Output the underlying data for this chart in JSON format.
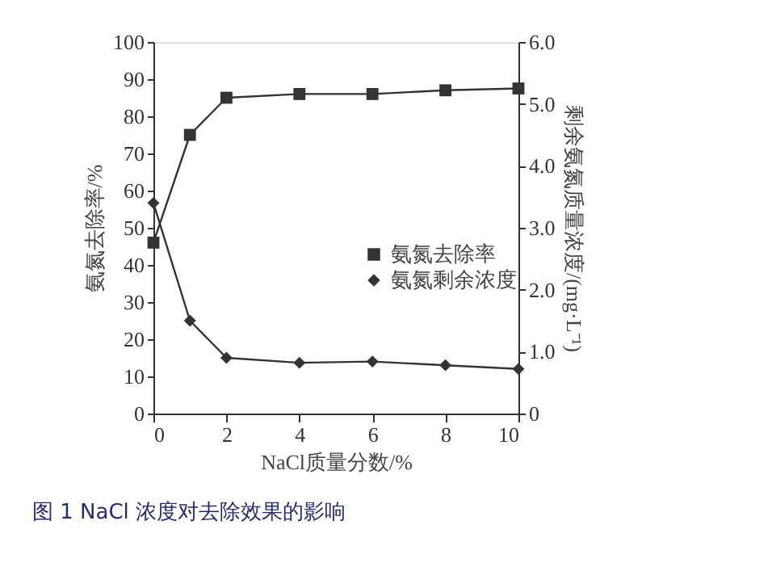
{
  "chart_data": {
    "type": "line",
    "xlabel": "NaCl质量分数/%",
    "ylabel": "氨氮去除率/%",
    "y2label": "剩余氨氮质量浓度/(mg·L⁻¹)",
    "x": [
      0,
      1,
      2,
      4,
      6,
      8,
      10
    ],
    "series": [
      {
        "name": "氨氮去除率",
        "color": "#333333",
        "marker": "square",
        "values": [
          46,
          75,
          85,
          86,
          86,
          87,
          87.5
        ]
      },
      {
        "name": "氨氮剩余浓度",
        "color": "#333333",
        "marker": "diamond",
        "axis": "y2",
        "values": [
          3.4,
          1.5,
          0.9,
          0.82,
          0.84,
          0.78,
          0.72
        ]
      }
    ],
    "xlim": [
      0,
      10
    ],
    "xticks": [
      0,
      2,
      4,
      6,
      8,
      10
    ],
    "ylim": [
      0,
      100
    ],
    "yticks": [
      0,
      10,
      20,
      30,
      40,
      50,
      60,
      70,
      80,
      90,
      100
    ],
    "y2lim": [
      0,
      6
    ],
    "y2ticks": [
      0,
      {
        "value": 1,
        "label": "1.0"
      },
      {
        "value": 2,
        "label": "2.0"
      },
      {
        "value": 3,
        "label": "3.0"
      },
      {
        "value": 4,
        "label": "4.0"
      },
      {
        "value": 5,
        "label": "5.0"
      },
      {
        "value": 6,
        "label": "6.0"
      }
    ],
    "legend": "right",
    "grid": false,
    "line_style": "solid",
    "annotations": [
      "图 1 NaCl 浓度对去除效果的影响"
    ]
  }
}
